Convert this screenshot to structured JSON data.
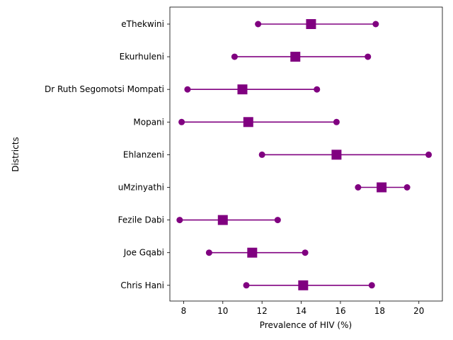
{
  "chart_data": {
    "type": "dot-range",
    "title": "",
    "xlabel": "Prevalence of HIV (%)",
    "ylabel": "Districts",
    "xlim": [
      7.3,
      21.2
    ],
    "xticks": [
      "8",
      "10",
      "12",
      "14",
      "16",
      "18",
      "20"
    ],
    "categories": [
      "eThekwini",
      "Ekurhuleni",
      "Dr Ruth Segomotsi Mompati",
      "Mopani",
      "Ehlanzeni",
      "uMzinyathi",
      "Fezile Dabi",
      "Joe Gqabi",
      "Chris Hani"
    ],
    "series": [
      {
        "role": "low",
        "marker": "circle",
        "values": [
          11.8,
          10.6,
          8.2,
          7.9,
          12.0,
          16.9,
          7.8,
          9.3,
          11.2
        ]
      },
      {
        "role": "estimate",
        "marker": "square",
        "values": [
          14.5,
          13.7,
          11.0,
          11.3,
          15.8,
          18.1,
          10.0,
          11.5,
          14.1
        ]
      },
      {
        "role": "high",
        "marker": "circle",
        "values": [
          17.8,
          17.4,
          14.8,
          15.8,
          20.5,
          19.4,
          12.8,
          14.2,
          17.6
        ]
      }
    ],
    "color": "#800080",
    "grid": false,
    "legend": "none"
  }
}
